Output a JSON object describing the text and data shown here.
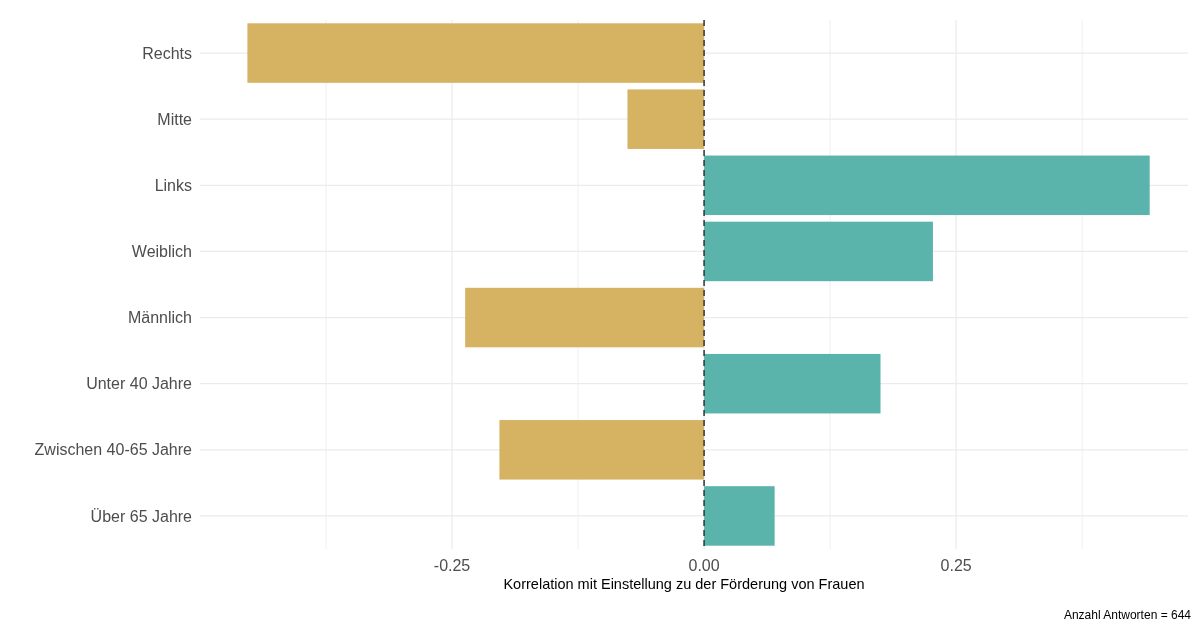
{
  "chart_data": {
    "type": "bar",
    "orientation": "horizontal",
    "categories": [
      "Rechts",
      "Mitte",
      "Links",
      "Weiblich",
      "Männlich",
      "Unter 40 Jahre",
      "Zwischen 40-65 Jahre",
      "Über 65 Jahre"
    ],
    "values": [
      -0.453,
      -0.076,
      0.442,
      0.227,
      -0.237,
      0.175,
      -0.203,
      0.07
    ],
    "colors": [
      "#d6b263",
      "#d6b263",
      "#5ab4ac",
      "#5ab4ac",
      "#d6b263",
      "#5ab4ac",
      "#d6b263",
      "#5ab4ac"
    ],
    "xlim": [
      -0.5,
      0.48
    ],
    "xticks": [
      {
        "value": -0.375,
        "label": null
      },
      -0.25,
      {
        "value": -0.125,
        "label": null
      },
      {
        "value": 0,
        "label": "0.00"
      },
      {
        "value": 0.125,
        "label": null
      },
      0.25,
      {
        "value": 0.375,
        "label": null
      }
    ],
    "xlabel": "Korrelation mit Einstellung zu der Förderung von Frauen",
    "annotations": [
      "Anzahl Antworten = 644"
    ],
    "ref_lines": [
      {
        "axis": "x",
        "value": 0,
        "line_style": "dashed",
        "color": "#333333"
      }
    ],
    "grid": true
  }
}
